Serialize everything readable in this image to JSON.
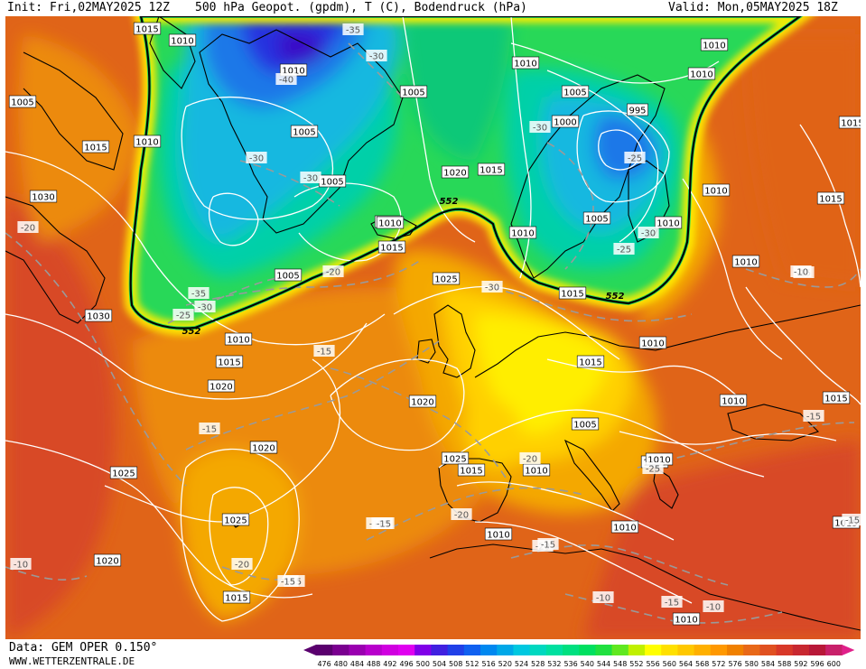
{
  "header": {
    "init": "Init: Fri,02MAY2025 12Z",
    "title": "500 hPa Geopot. (gpdm), T (C), Bodendruck (hPa)",
    "valid": "Valid: Mon,05MAY2025 18Z"
  },
  "footer": {
    "data_source": "Data: GEM OPER 0.150°",
    "website": "WWW.WETTERZENTRALE.DE"
  },
  "colorbar": {
    "ticks": [
      "476",
      "480",
      "484",
      "488",
      "492",
      "496",
      "500",
      "504",
      "508",
      "512",
      "516",
      "520",
      "524",
      "528",
      "532",
      "536",
      "540",
      "544",
      "548",
      "552",
      "556",
      "560",
      "564",
      "568",
      "572",
      "576",
      "580",
      "584",
      "588",
      "592",
      "596",
      "600"
    ],
    "colors": [
      "#5a006e",
      "#7a0090",
      "#9a00b0",
      "#b800cc",
      "#d000e0",
      "#e000f0",
      "#8000e8",
      "#4020e0",
      "#2040e8",
      "#1060f0",
      "#0088f0",
      "#00a8e8",
      "#00c8e0",
      "#00d8c0",
      "#00e0a0",
      "#00e080",
      "#00e060",
      "#20e040",
      "#60e820",
      "#c0f000",
      "#ffff00",
      "#ffe000",
      "#ffc800",
      "#ffb000",
      "#ff9800",
      "#f08000",
      "#e86818",
      "#e05020",
      "#d83828",
      "#c82830",
      "#b81838",
      "#c8206a"
    ],
    "under_color": "#5a006e",
    "over_color": "#e0208a"
  },
  "map": {
    "fill_colors": {
      "red": "#d84828",
      "dark_orange": "#e06418",
      "orange": "#ec8a08",
      "light_orange": "#f4a800",
      "gold": "#ffd000",
      "yellow": "#ffee00",
      "green": "#28d858",
      "green2": "#10c878",
      "teal": "#00d0a8",
      "cyan": "#18b8e0",
      "blue": "#1a78e8",
      "deep_blue": "#2830e0",
      "violet": "#3810c8"
    },
    "geopotential_label": "552",
    "pressure_labels": [
      "1015",
      "1010",
      "1010",
      "1005",
      "1005",
      "1005",
      "1010",
      "1015",
      "1020",
      "1020",
      "1025",
      "1030",
      "1030",
      "1005",
      "1010",
      "1015",
      "1020",
      "1025",
      "1025",
      "1020",
      "1025",
      "1015",
      "1015",
      "1005",
      "995",
      "1000",
      "1010",
      "1010",
      "1010",
      "1005",
      "1010",
      "1010",
      "1005",
      "1010",
      "1015",
      "1005",
      "1010",
      "1010",
      "1015",
      "1015",
      "1010",
      "1010",
      "1015",
      "1010",
      "1015",
      "1010",
      "1020",
      "1015",
      "1010",
      "1010",
      "1015",
      "1020",
      "1015",
      "1015",
      "1010",
      "1010"
    ],
    "temperature_labels": [
      "-35",
      "-30",
      "-40",
      "-30",
      "-30",
      "-20",
      "-35",
      "-30",
      "-25",
      "-15",
      "-15",
      "-15",
      "-20",
      "-15",
      "-20",
      "-30",
      "-30",
      "-25",
      "-25",
      "-30",
      "-25",
      "-20",
      "-20",
      "-15",
      "-15",
      "-15",
      "-20",
      "-15",
      "-10",
      "-15",
      "-10",
      "-10",
      "-10",
      "-15",
      "-15",
      "-15"
    ]
  }
}
